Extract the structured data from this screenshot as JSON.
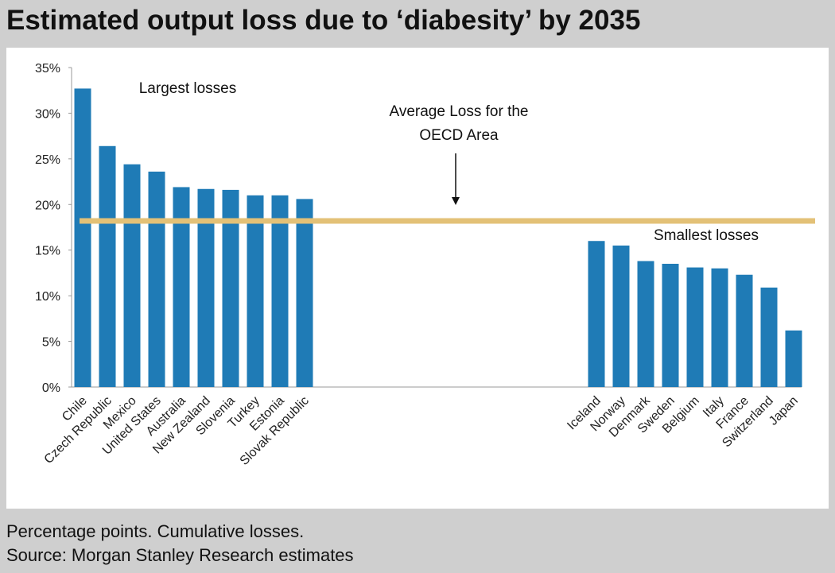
{
  "header": {
    "title": "Estimated output loss due to ‘diabesity’ by 2035"
  },
  "footer": {
    "note": "Percentage points. Cumulative losses.",
    "source": "Source: Morgan Stanley Research estimates"
  },
  "colors": {
    "bar": "#1f7bb6",
    "average_line": "#e3c177",
    "axis": "#9a9a9a"
  },
  "chart_data": {
    "type": "bar",
    "title": "Estimated output loss due to ‘diabesity’ by 2035",
    "xlabel": "",
    "ylabel": "",
    "ylim": [
      0,
      35
    ],
    "yticks": [
      0,
      5,
      10,
      15,
      20,
      25,
      30,
      35
    ],
    "ytick_labels": [
      "0%",
      "5%",
      "10%",
      "15%",
      "20%",
      "25%",
      "30%",
      "35%"
    ],
    "groups": [
      {
        "label": "Largest losses",
        "categories": [
          "Chile",
          "Czech Republic",
          "Mexico",
          "United States",
          "Australia",
          "New Zealand",
          "Slovenia",
          "Turkey",
          "Estonia",
          "Slovak Republic"
        ],
        "values": [
          32.7,
          26.4,
          24.4,
          23.6,
          21.9,
          21.7,
          21.6,
          21.0,
          21.0,
          20.6
        ]
      },
      {
        "label": "Smallest losses",
        "categories": [
          "Iceland",
          "Norway",
          "Denmark",
          "Sweden",
          "Belgium",
          "Italy",
          "France",
          "Switzerland",
          "Japan"
        ],
        "values": [
          16.0,
          15.5,
          13.8,
          13.5,
          13.1,
          13.0,
          12.3,
          10.9,
          6.2
        ]
      }
    ],
    "average_line": {
      "value": 18.2,
      "label_line1": "Average Loss for the",
      "label_line2": "OECD Area"
    }
  }
}
